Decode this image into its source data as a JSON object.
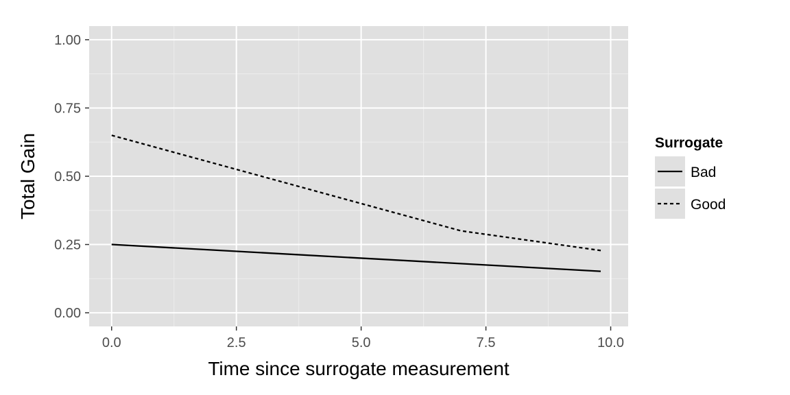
{
  "chart_data": {
    "type": "line",
    "title": "",
    "xlabel": "Time since surrogate measurement",
    "ylabel": "Total Gain",
    "xlim": [
      -0.45,
      10.35
    ],
    "ylim": [
      -0.05,
      1.05
    ],
    "x_ticks": [
      0,
      2.5,
      5,
      7.5,
      10
    ],
    "x_tick_labels": [
      "0.0",
      "2.5",
      "5.0",
      "7.5",
      "10.0"
    ],
    "y_ticks": [
      0,
      0.25,
      0.5,
      0.75,
      1
    ],
    "y_tick_labels": [
      "0.00",
      "0.25",
      "0.50",
      "0.75",
      "1.00"
    ],
    "grid": true,
    "legend": {
      "title": "Surrogate",
      "position": "right"
    },
    "series": [
      {
        "name": "Bad",
        "line_style": "solid",
        "x": [
          0,
          9.8
        ],
        "y": [
          0.25,
          0.152
        ]
      },
      {
        "name": "Good",
        "line_style": "dashed",
        "x": [
          0,
          2.5,
          5,
          7,
          9.8
        ],
        "y": [
          0.65,
          0.525,
          0.4,
          0.3,
          0.228
        ]
      }
    ],
    "colors": {
      "panel_background": "#e0e0e0",
      "grid_major": "#ffffff",
      "grid_minor": "#ededed",
      "line": "#000000"
    }
  }
}
